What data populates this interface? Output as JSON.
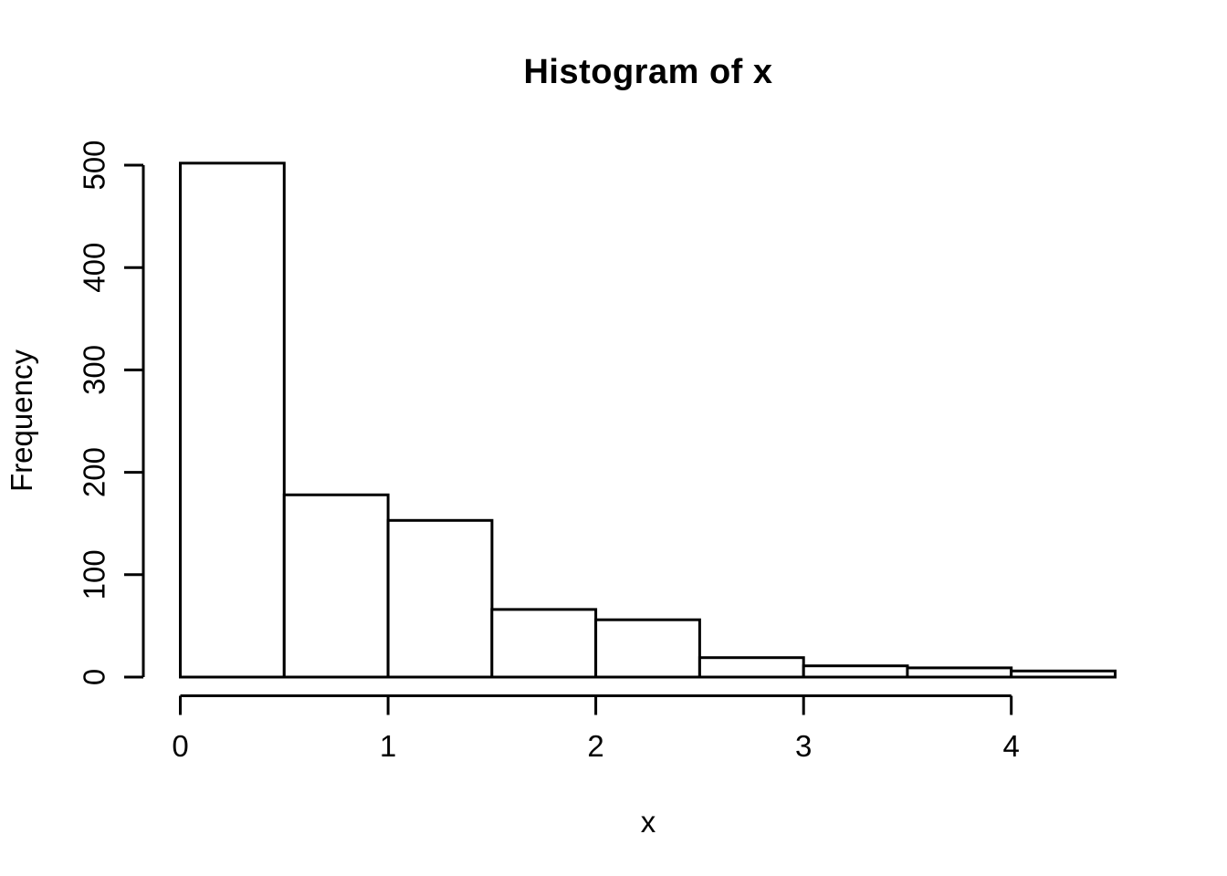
{
  "chart_data": {
    "type": "bar",
    "subtype": "histogram",
    "title": "Histogram of x",
    "xlabel": "x",
    "ylabel": "Frequency",
    "bin_breaks": [
      0,
      0.5,
      1,
      1.5,
      2,
      2.5,
      3,
      3.5,
      4,
      4.5
    ],
    "counts": [
      502,
      178,
      153,
      66,
      56,
      19,
      11,
      9,
      6
    ],
    "x_ticks": [
      0,
      1,
      2,
      3,
      4
    ],
    "y_ticks": [
      0,
      100,
      200,
      300,
      400,
      500
    ],
    "xlim": [
      0,
      4.5
    ],
    "ylim": [
      0,
      500
    ],
    "grid": false,
    "legend": false,
    "bar_fill": "#ffffff",
    "bar_stroke": "#000000",
    "axis_color": "#000000",
    "background": "#ffffff"
  }
}
